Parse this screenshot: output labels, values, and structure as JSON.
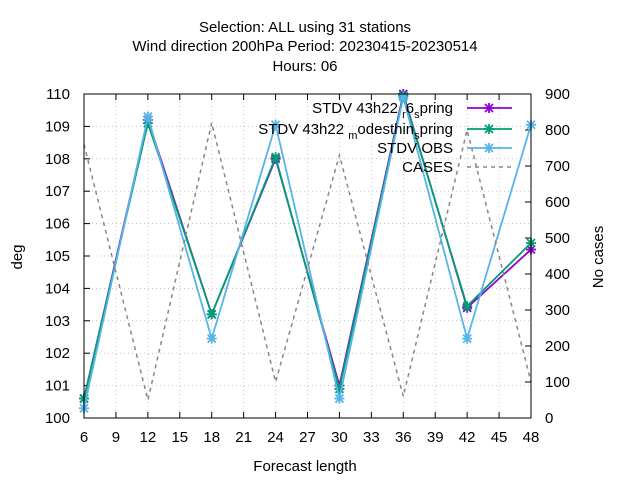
{
  "chart_data": {
    "type": "line",
    "title_lines": [
      "Selection: ALL using    31 stations",
      "Wind direction 200hPa   Period: 20230415-20230514",
      "Hours:  06"
    ],
    "xlabel": "Forecast length",
    "ylabel": "deg",
    "y2label": "No cases",
    "xlim": [
      6,
      48
    ],
    "ylim": [
      100,
      110
    ],
    "y2lim": [
      0,
      900
    ],
    "xticks": [
      6,
      9,
      12,
      15,
      18,
      21,
      24,
      27,
      30,
      33,
      36,
      39,
      42,
      45,
      48
    ],
    "yticks": [
      100,
      101,
      102,
      103,
      104,
      105,
      106,
      107,
      108,
      109,
      110
    ],
    "y2ticks": [
      0,
      100,
      200,
      300,
      400,
      500,
      600,
      700,
      800,
      900
    ],
    "grid": true,
    "legend_position": "top-right",
    "x": [
      6,
      12,
      18,
      24,
      30,
      36,
      42,
      48
    ],
    "series": [
      {
        "name": "STDV 43h22_r6ds_pring",
        "legend_main": "STDV 43h22",
        "legend_sub": "r",
        "legend_tail": "6",
        "legend_sub2": "s",
        "legend_end": "pring",
        "color": "#9400d3",
        "marker": "x",
        "axis": "y",
        "values": [
          100.6,
          109.2,
          103.2,
          108.0,
          101.0,
          110.0,
          103.4,
          105.2
        ]
      },
      {
        "name": "STDV 43h22_modesthin_spring",
        "legend_main": "STDV 43h22",
        "legend_sub": "m",
        "legend_tail": "odesthin",
        "legend_sub2": "s",
        "legend_end": "pring",
        "color": "#009e73",
        "marker": "x",
        "axis": "y",
        "values": [
          100.6,
          109.1,
          103.2,
          108.05,
          100.9,
          109.95,
          103.45,
          105.4
        ]
      },
      {
        "name": "STDV OBS",
        "legend_main": "STDV OBS",
        "color": "#56b4e9",
        "marker": "x",
        "axis": "y",
        "values": [
          100.3,
          109.3,
          102.45,
          109.05,
          100.6,
          109.9,
          102.45,
          109.05
        ]
      },
      {
        "name": "CASES",
        "legend_main": "CASES",
        "color": "#888888",
        "dashed": true,
        "axis": "y2",
        "values": [
          760,
          50,
          820,
          100,
          730,
          60,
          800,
          100
        ]
      }
    ]
  }
}
